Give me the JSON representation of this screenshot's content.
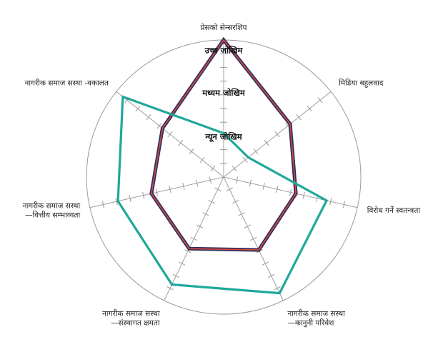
{
  "chart_data": {
    "type": "radar",
    "axes": [
      "प्रेसको सेन्सरशिप",
      "मिडिया बहुलवाद",
      "विरोध गर्ने स्वतन्त्रता",
      "नागरीक समाज सस्था —कानुनी परिवेश",
      "नागरीक समाज सस्था —संस्थागत क्षमता",
      "नागरीक समाज सस्था —वित्तीय सम्भाव्यता",
      "नागरीक समाज सस्था -वकालत"
    ],
    "axis_label_lines": [
      [
        "प्रेसको सेन्सरशिप"
      ],
      [
        "मिडिया बहुलवाद"
      ],
      [
        "विरोध गर्ने स्वतन्त्रता"
      ],
      [
        "नागरीक समाज सस्था",
        "—कानुनी परिवेश"
      ],
      [
        "नागरीक समाज सस्था",
        "—संस्थागत क्षमता"
      ],
      [
        "नागरीक समाज सस्था",
        "—वित्तीय सम्भाव्यता"
      ],
      [
        "नागरीक समाज सस्था -वकालत"
      ]
    ],
    "rings": [
      "न्यून जोखिम",
      "मध्यम जोखिम",
      "उच्च जोखिम"
    ],
    "range": [
      0,
      10
    ],
    "ticks": [
      1,
      2,
      3,
      4,
      5,
      6,
      7,
      8,
      9
    ],
    "grid": true,
    "series": [
      {
        "values": [
          10.0,
          6.2,
          5.4,
          5.9,
          5.8,
          5.4,
          5.7
        ],
        "color": "#2b2f5e",
        "inner_color": "#d9483b"
      },
      {
        "values": [
          3.2,
          2.3,
          7.7,
          9.4,
          8.7,
          7.9,
          9.4
        ],
        "color": "#1fa89a"
      }
    ]
  }
}
